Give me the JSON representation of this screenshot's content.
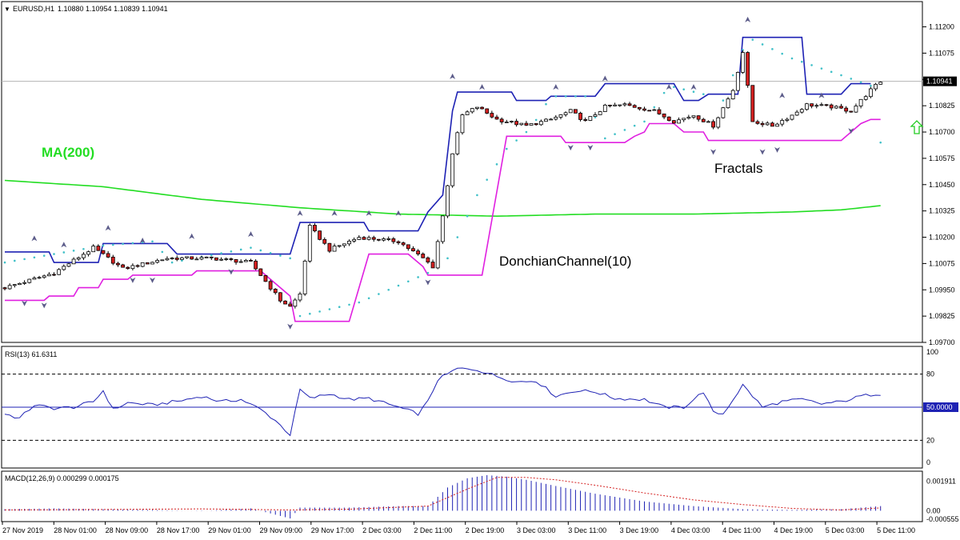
{
  "header": {
    "symbol": "EURUSD,H1",
    "ohlc": "1.10880 1.10954 1.10839 1.10941"
  },
  "colors": {
    "bull_fill": "#ffffff",
    "bear_fill": "#d42020",
    "wick": "#000000",
    "donchian_upper": "#1e22b4",
    "donchian_lower": "#e020e0",
    "ma200": "#22dd22",
    "sar": "#40c0c8",
    "fractal": "#5c5c8a",
    "rsi_line": "#1e22b4",
    "macd_hist": "#1e22b4",
    "macd_signal": "#d42020",
    "arrow": "#22cc22"
  },
  "chart_data": [
    {
      "id": "price",
      "type": "candlestick",
      "ylim": [
        1.097,
        1.1132
      ],
      "y_ticks": [
        "1.11200",
        "1.11075",
        "1.10950",
        "1.10825",
        "1.10700",
        "1.10575",
        "1.10450",
        "1.10325",
        "1.10200",
        "1.10075",
        "1.09950",
        "1.09825",
        "1.09700"
      ],
      "current_price_label": "1.10941",
      "current_price": 1.10941,
      "x_labels": [
        "27 Nov 2019",
        "28 Nov 01:00",
        "28 Nov 09:00",
        "28 Nov 17:00",
        "29 Nov 01:00",
        "29 Nov 09:00",
        "29 Nov 17:00",
        "2 Dec 03:00",
        "2 Dec 11:00",
        "2 Dec 19:00",
        "3 Dec 03:00",
        "3 Dec 11:00",
        "3 Dec 19:00",
        "4 Dec 03:00",
        "4 Dec 11:00",
        "4 Dec 19:00",
        "5 Dec 03:00",
        "5 Dec 11:00"
      ],
      "annotations": [
        "MA(200)",
        "DonchianChannel(10)",
        "Fractals"
      ],
      "anchors": [
        [
          0,
          1.0996
        ],
        [
          10,
          1.1003
        ],
        [
          18,
          1.1015
        ],
        [
          24,
          1.1005
        ],
        [
          33,
          1.101
        ],
        [
          42,
          1.101
        ],
        [
          50,
          1.1008
        ],
        [
          56,
          1.099
        ],
        [
          58,
          1.0987
        ],
        [
          60,
          1.0993
        ],
        [
          62,
          1.1025
        ],
        [
          66,
          1.1014
        ],
        [
          72,
          1.102
        ],
        [
          80,
          1.1018
        ],
        [
          85,
          1.101
        ],
        [
          87,
          1.1006
        ],
        [
          89,
          1.103
        ],
        [
          91,
          1.106
        ],
        [
          93,
          1.1078
        ],
        [
          96,
          1.1082
        ],
        [
          100,
          1.1076
        ],
        [
          106,
          1.1073
        ],
        [
          111,
          1.1076
        ],
        [
          115,
          1.108
        ],
        [
          118,
          1.1075
        ],
        [
          122,
          1.1082
        ],
        [
          126,
          1.1083
        ],
        [
          132,
          1.108
        ],
        [
          136,
          1.1075
        ],
        [
          140,
          1.1078
        ],
        [
          144,
          1.1073
        ],
        [
          148,
          1.109
        ],
        [
          150,
          1.1108
        ],
        [
          152,
          1.1075
        ],
        [
          156,
          1.1073
        ],
        [
          160,
          1.1078
        ],
        [
          163,
          1.1083
        ],
        [
          168,
          1.1082
        ],
        [
          172,
          1.108
        ],
        [
          176,
          1.109
        ],
        [
          178,
          1.1094
        ]
      ],
      "donchian_upper": [
        [
          0,
          1.1013
        ],
        [
          9,
          1.1013
        ],
        [
          10,
          1.1008
        ],
        [
          19,
          1.1008
        ],
        [
          20,
          1.1017
        ],
        [
          33,
          1.1017
        ],
        [
          35,
          1.1012
        ],
        [
          58,
          1.1012
        ],
        [
          60,
          1.1027
        ],
        [
          73,
          1.1027
        ],
        [
          74,
          1.1023
        ],
        [
          84,
          1.1023
        ],
        [
          86,
          1.1032
        ],
        [
          89,
          1.104
        ],
        [
          91,
          1.108
        ],
        [
          92,
          1.1089
        ],
        [
          103,
          1.1089
        ],
        [
          104,
          1.1085
        ],
        [
          110,
          1.1085
        ],
        [
          111,
          1.1087
        ],
        [
          120,
          1.1087
        ],
        [
          122,
          1.1093
        ],
        [
          136,
          1.1093
        ],
        [
          138,
          1.1085
        ],
        [
          141,
          1.1085
        ],
        [
          143,
          1.1088
        ],
        [
          149,
          1.1088
        ],
        [
          150,
          1.1115
        ],
        [
          162,
          1.1115
        ],
        [
          163,
          1.1088
        ],
        [
          170,
          1.1088
        ],
        [
          172,
          1.1093
        ],
        [
          176,
          1.1093
        ]
      ],
      "donchian_lower": [
        [
          0,
          1.099
        ],
        [
          8,
          1.099
        ],
        [
          9,
          1.0992
        ],
        [
          14,
          1.0992
        ],
        [
          15,
          1.0996
        ],
        [
          19,
          1.0996
        ],
        [
          20,
          1.1
        ],
        [
          25,
          1.1
        ],
        [
          26,
          1.1002
        ],
        [
          38,
          1.1002
        ],
        [
          39,
          1.1004
        ],
        [
          52,
          1.1004
        ],
        [
          54,
          1.1
        ],
        [
          58,
          1.0992
        ],
        [
          59,
          1.098
        ],
        [
          70,
          1.098
        ],
        [
          74,
          1.1012
        ],
        [
          82,
          1.1012
        ],
        [
          85,
          1.1006
        ],
        [
          86,
          1.1002
        ],
        [
          97,
          1.1002
        ],
        [
          102,
          1.1068
        ],
        [
          113,
          1.1068
        ],
        [
          114,
          1.1065
        ],
        [
          126,
          1.1065
        ],
        [
          128,
          1.1068
        ],
        [
          130,
          1.107
        ],
        [
          131,
          1.1074
        ],
        [
          136,
          1.1074
        ],
        [
          138,
          1.107
        ],
        [
          142,
          1.107
        ],
        [
          143,
          1.1066
        ],
        [
          170,
          1.1066
        ],
        [
          174,
          1.1074
        ],
        [
          176,
          1.1076
        ],
        [
          178,
          1.1076
        ]
      ],
      "ma200": [
        [
          0,
          1.1047
        ],
        [
          20,
          1.1044
        ],
        [
          40,
          1.1038
        ],
        [
          60,
          1.1034
        ],
        [
          80,
          1.1031
        ],
        [
          100,
          1.103
        ],
        [
          120,
          1.1031
        ],
        [
          140,
          1.1031
        ],
        [
          160,
          1.1032
        ],
        [
          170,
          1.1033
        ],
        [
          178,
          1.1035
        ]
      ],
      "fractals_up": [
        [
          6,
          1.1017
        ],
        [
          12,
          1.1014
        ],
        [
          21,
          1.1022
        ],
        [
          28,
          1.1016
        ],
        [
          38,
          1.1018
        ],
        [
          50,
          1.1019
        ],
        [
          60,
          1.1029
        ],
        [
          67,
          1.1029
        ],
        [
          74,
          1.1029
        ],
        [
          80,
          1.1029
        ],
        [
          91,
          1.1094
        ],
        [
          97,
          1.1089
        ],
        [
          112,
          1.1089
        ],
        [
          122,
          1.1093
        ],
        [
          135,
          1.1089
        ],
        [
          140,
          1.1089
        ],
        [
          151,
          1.1121
        ],
        [
          158,
          1.1085
        ],
        [
          166,
          1.1085
        ]
      ],
      "fractals_down": [
        [
          4,
          1.0991
        ],
        [
          8,
          1.099
        ],
        [
          26,
          1.1002
        ],
        [
          30,
          1.1002
        ],
        [
          46,
          1.1006
        ],
        [
          58,
          1.098
        ],
        [
          86,
          1.1001
        ],
        [
          115,
          1.1065
        ],
        [
          119,
          1.1065
        ],
        [
          144,
          1.1063
        ],
        [
          154,
          1.1063
        ],
        [
          157,
          1.1064
        ],
        [
          172,
          1.1073
        ]
      ],
      "sar": [
        [
          0,
          1.1008
        ],
        [
          20,
          1.1016
        ],
        [
          30,
          1.1018
        ],
        [
          34,
          1.1008
        ],
        [
          50,
          1.1015
        ],
        [
          58,
          1.101
        ],
        [
          59,
          1.0982
        ],
        [
          72,
          1.0989
        ],
        [
          86,
          1.1003
        ],
        [
          90,
          1.101
        ],
        [
          96,
          1.104
        ],
        [
          102,
          1.1062
        ],
        [
          107,
          1.1072
        ],
        [
          111,
          1.1087
        ],
        [
          118,
          1.1087
        ],
        [
          122,
          1.1067
        ],
        [
          130,
          1.1075
        ],
        [
          135,
          1.1092
        ],
        [
          142,
          1.1088
        ],
        [
          143,
          1.1067
        ],
        [
          151,
          1.1115
        ],
        [
          160,
          1.1105
        ],
        [
          170,
          1.1097
        ],
        [
          176,
          1.1092
        ],
        [
          178,
          1.1065
        ]
      ]
    },
    {
      "id": "rsi",
      "type": "line",
      "label": "RSI(13) 61.6311",
      "ylim": [
        0,
        100
      ],
      "y_ticks": [
        "100",
        "80",
        "50.0000",
        "20",
        "0"
      ],
      "levels": [
        80,
        50,
        20
      ],
      "values": [
        [
          0,
          44
        ],
        [
          3,
          40
        ],
        [
          6,
          52
        ],
        [
          10,
          49
        ],
        [
          14,
          50
        ],
        [
          18,
          55
        ],
        [
          20,
          65
        ],
        [
          22,
          48
        ],
        [
          25,
          54
        ],
        [
          30,
          52
        ],
        [
          36,
          56
        ],
        [
          40,
          60
        ],
        [
          44,
          55
        ],
        [
          48,
          57
        ],
        [
          52,
          48
        ],
        [
          55,
          38
        ],
        [
          58,
          25
        ],
        [
          60,
          66
        ],
        [
          62,
          58
        ],
        [
          66,
          62
        ],
        [
          70,
          57
        ],
        [
          74,
          58
        ],
        [
          80,
          50
        ],
        [
          84,
          44
        ],
        [
          86,
          55
        ],
        [
          88,
          75
        ],
        [
          92,
          85
        ],
        [
          96,
          84
        ],
        [
          100,
          78
        ],
        [
          104,
          73
        ],
        [
          108,
          74
        ],
        [
          112,
          60
        ],
        [
          116,
          65
        ],
        [
          120,
          64
        ],
        [
          124,
          58
        ],
        [
          130,
          57
        ],
        [
          134,
          50
        ],
        [
          138,
          50
        ],
        [
          142,
          64
        ],
        [
          144,
          45
        ],
        [
          146,
          44
        ],
        [
          150,
          70
        ],
        [
          154,
          50
        ],
        [
          158,
          55
        ],
        [
          162,
          57
        ],
        [
          166,
          53
        ],
        [
          170,
          55
        ],
        [
          174,
          60
        ],
        [
          177,
          62
        ]
      ]
    },
    {
      "id": "macd",
      "type": "bar",
      "label": "MACD(12,26,9) 0.000299 0.000175",
      "ylim": [
        -0.0006,
        0.0024
      ],
      "y_ticks": [
        "0.001911",
        "0.00",
        "-0.000555"
      ],
      "histogram": [
        [
          0,
          0.0001
        ],
        [
          10,
          0.00015
        ],
        [
          20,
          0.0001
        ],
        [
          30,
          5e-05
        ],
        [
          40,
          -2e-05
        ],
        [
          50,
          0.00015
        ],
        [
          58,
          -0.0005
        ],
        [
          60,
          0.0002
        ],
        [
          70,
          0.0002
        ],
        [
          80,
          0.0003
        ],
        [
          86,
          0.0003
        ],
        [
          90,
          0.0015
        ],
        [
          94,
          0.0021
        ],
        [
          98,
          0.0023
        ],
        [
          102,
          0.0022
        ],
        [
          106,
          0.002
        ],
        [
          112,
          0.0016
        ],
        [
          120,
          0.0011
        ],
        [
          130,
          0.0006
        ],
        [
          140,
          0.0003
        ],
        [
          150,
          0.0001
        ],
        [
          160,
          5e-05
        ],
        [
          170,
          0.0001
        ],
        [
          178,
          0.0003
        ]
      ],
      "signal": [
        [
          0,
          5e-05
        ],
        [
          20,
          8e-05
        ],
        [
          40,
          0.00012
        ],
        [
          58,
          5e-05
        ],
        [
          70,
          0.0001
        ],
        [
          86,
          0.0003
        ],
        [
          94,
          0.0014
        ],
        [
          100,
          0.00215
        ],
        [
          106,
          0.00215
        ],
        [
          112,
          0.002
        ],
        [
          120,
          0.00165
        ],
        [
          130,
          0.00115
        ],
        [
          140,
          0.0007
        ],
        [
          150,
          0.0004
        ],
        [
          160,
          0.00015
        ],
        [
          170,
          5e-05
        ],
        [
          178,
          0.00018
        ]
      ]
    }
  ]
}
